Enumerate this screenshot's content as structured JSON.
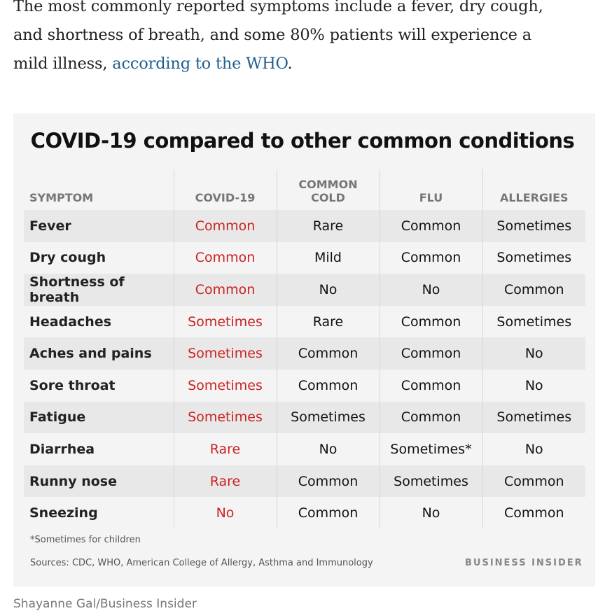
{
  "article": {
    "line1": "The most commonly reported symptoms include a fever, dry cough,",
    "line2": "and shortness of breath, and some 80% patients will experience a",
    "line3_before_link": "mild illness, ",
    "link_text": "according to the WHO",
    "line3_after_link": "."
  },
  "table": {
    "title": "COVID-19 compared to other common conditions",
    "headers": {
      "symptom": "SYMPTOM",
      "covid": "COVID-19",
      "cold_line1": "COMMON",
      "cold_line2": "COLD",
      "flu": "FLU",
      "allergies": "ALLERGIES"
    },
    "rows": [
      {
        "symptom": "Fever",
        "covid": "Common",
        "cold": "Rare",
        "flu": "Common",
        "allergies": "Sometimes"
      },
      {
        "symptom": "Dry cough",
        "covid": "Common",
        "cold": "Mild",
        "flu": "Common",
        "allergies": "Sometimes"
      },
      {
        "symptom": "Shortness of breath",
        "covid": "Common",
        "cold": "No",
        "flu": "No",
        "allergies": "Common"
      },
      {
        "symptom": "Headaches",
        "covid": "Sometimes",
        "cold": "Rare",
        "flu": "Common",
        "allergies": "Sometimes"
      },
      {
        "symptom": "Aches and pains",
        "covid": "Sometimes",
        "cold": "Common",
        "flu": "Common",
        "allergies": "No"
      },
      {
        "symptom": "Sore throat",
        "covid": "Sometimes",
        "cold": "Common",
        "flu": "Common",
        "allergies": "No"
      },
      {
        "symptom": "Fatigue",
        "covid": "Sometimes",
        "cold": "Sometimes",
        "flu": "Common",
        "allergies": "Sometimes"
      },
      {
        "symptom": "Diarrhea",
        "covid": "Rare",
        "cold": "No",
        "flu": "Sometimes*",
        "allergies": "No"
      },
      {
        "symptom": "Runny nose",
        "covid": "Rare",
        "cold": "Common",
        "flu": "Sometimes",
        "allergies": "Common"
      },
      {
        "symptom": "Sneezing",
        "covid": "No",
        "cold": "Common",
        "flu": "No",
        "allergies": "Common"
      }
    ],
    "footnote": "*Sometimes for children",
    "sources_label": "Sources:",
    "sources_text": " CDC, WHO,  American College of Allergy, Asthma and Immunology",
    "brand": "BUSINESS INSIDER"
  },
  "credit": "Shayanne Gal/Business Insider",
  "colors": {
    "covid_text": "#cc2222",
    "link": "#1f5f8f",
    "card_bg": "#f4f4f4",
    "row_alt": "#e8e8e8"
  }
}
